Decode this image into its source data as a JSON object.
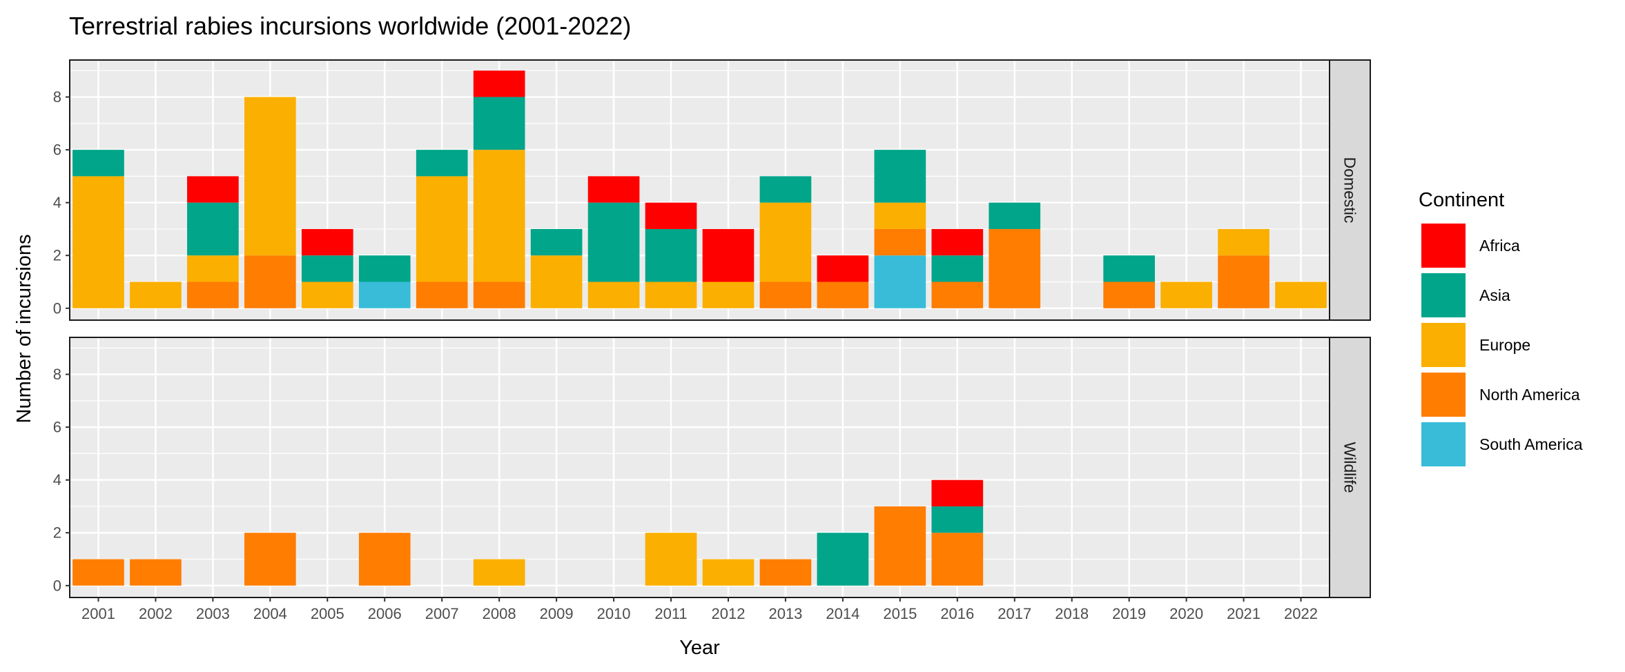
{
  "chart_data": {
    "type": "bar",
    "stacked": true,
    "title": "Terrestrial rabies incursions worldwide (2001-2022)",
    "xlabel": "Year",
    "ylabel": "Number of incursions",
    "categories": [
      "2001",
      "2002",
      "2003",
      "2004",
      "2005",
      "2006",
      "2007",
      "2008",
      "2009",
      "2010",
      "2011",
      "2012",
      "2013",
      "2014",
      "2015",
      "2016",
      "2017",
      "2018",
      "2019",
      "2020",
      "2021",
      "2022"
    ],
    "ylim": [
      0,
      9.4
    ],
    "y_ticks": [
      0,
      2,
      4,
      6,
      8
    ],
    "grid": true,
    "legend": {
      "title": "Continent",
      "position": "right",
      "items": [
        {
          "name": "Africa",
          "color": "#ff0000"
        },
        {
          "name": "Asia",
          "color": "#00a58a"
        },
        {
          "name": "Europe",
          "color": "#fbaf00"
        },
        {
          "name": "North America",
          "color": "#ff7d00"
        },
        {
          "name": "South America",
          "color": "#38bcd8"
        }
      ]
    },
    "stack_order": [
      "South America",
      "North America",
      "Europe",
      "Asia",
      "Africa"
    ],
    "facets": [
      {
        "label": "Domestic",
        "series": [
          {
            "name": "Africa",
            "values": [
              0,
              0,
              1,
              0,
              1,
              0,
              0,
              1,
              0,
              1,
              1,
              2,
              0,
              1,
              0,
              1,
              0,
              0,
              0,
              0,
              0,
              0
            ]
          },
          {
            "name": "Asia",
            "values": [
              1,
              0,
              2,
              0,
              1,
              1,
              1,
              2,
              1,
              3,
              2,
              0,
              1,
              0,
              2,
              1,
              1,
              0,
              1,
              0,
              0,
              0
            ]
          },
          {
            "name": "Europe",
            "values": [
              5,
              1,
              1,
              6,
              1,
              0,
              4,
              5,
              2,
              1,
              1,
              1,
              3,
              0,
              1,
              0,
              0,
              0,
              0,
              1,
              1,
              1
            ]
          },
          {
            "name": "North America",
            "values": [
              0,
              0,
              1,
              2,
              0,
              0,
              1,
              1,
              0,
              0,
              0,
              0,
              1,
              1,
              1,
              1,
              3,
              0,
              1,
              0,
              2,
              0
            ]
          },
          {
            "name": "South America",
            "values": [
              0,
              0,
              0,
              0,
              0,
              1,
              0,
              0,
              0,
              0,
              0,
              0,
              0,
              0,
              2,
              0,
              0,
              0,
              0,
              0,
              0,
              0
            ]
          }
        ]
      },
      {
        "label": "Wildlife",
        "series": [
          {
            "name": "Africa",
            "values": [
              0,
              0,
              0,
              0,
              0,
              0,
              0,
              0,
              0,
              0,
              0,
              0,
              0,
              0,
              0,
              1,
              0,
              0,
              0,
              0,
              0,
              0
            ]
          },
          {
            "name": "Asia",
            "values": [
              0,
              0,
              0,
              0,
              0,
              0,
              0,
              0,
              0,
              0,
              0,
              0,
              0,
              2,
              0,
              1,
              0,
              0,
              0,
              0,
              0,
              0
            ]
          },
          {
            "name": "Europe",
            "values": [
              0,
              0,
              0,
              0,
              0,
              0,
              0,
              1,
              0,
              0,
              2,
              1,
              0,
              0,
              0,
              0,
              0,
              0,
              0,
              0,
              0,
              0
            ]
          },
          {
            "name": "North America",
            "values": [
              1,
              1,
              0,
              2,
              0,
              2,
              0,
              0,
              0,
              0,
              0,
              0,
              1,
              0,
              3,
              2,
              0,
              0,
              0,
              0,
              0,
              0
            ]
          },
          {
            "name": "South America",
            "values": [
              0,
              0,
              0,
              0,
              0,
              0,
              0,
              0,
              0,
              0,
              0,
              0,
              0,
              0,
              0,
              0,
              0,
              0,
              0,
              0,
              0,
              0
            ]
          }
        ]
      }
    ]
  }
}
